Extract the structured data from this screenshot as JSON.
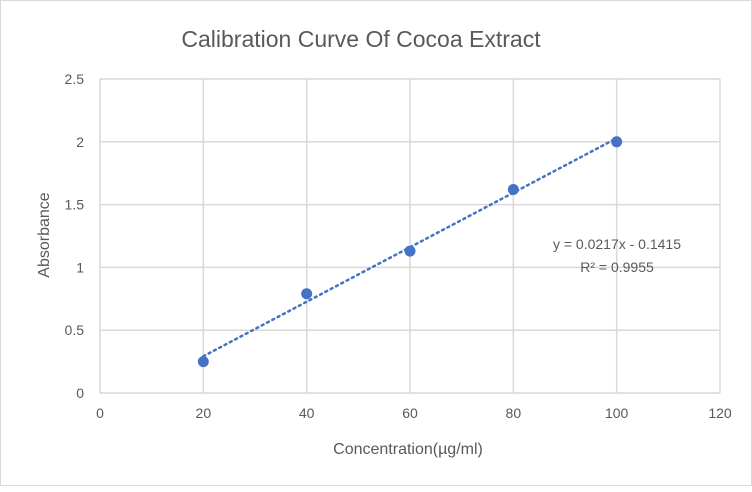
{
  "chart_data": {
    "type": "scatter",
    "title": "Calibration Curve Of Cocoa  Extract",
    "xlabel": "Concentration(µg/ml)",
    "ylabel": "Absorbance",
    "xlim": [
      0,
      120
    ],
    "ylim": [
      0,
      2.5
    ],
    "xticks": [
      "0",
      "20",
      "40",
      "60",
      "80",
      "100",
      "120"
    ],
    "yticks": [
      "0",
      "0.5",
      "1",
      "1.5",
      "2",
      "2.5"
    ],
    "grid": true,
    "series": [
      {
        "name": "Absorbance",
        "x": [
          20,
          40,
          60,
          80,
          100
        ],
        "y": [
          0.25,
          0.79,
          1.13,
          1.62,
          2.0
        ],
        "color": "#4472c4"
      }
    ],
    "trendline": {
      "type": "linear",
      "slope": 0.0217,
      "intercept": -0.1415,
      "equation": "y = 0.0217x - 0.1415",
      "r_squared": "R² = 0.9955",
      "color": "#4472c4"
    }
  }
}
